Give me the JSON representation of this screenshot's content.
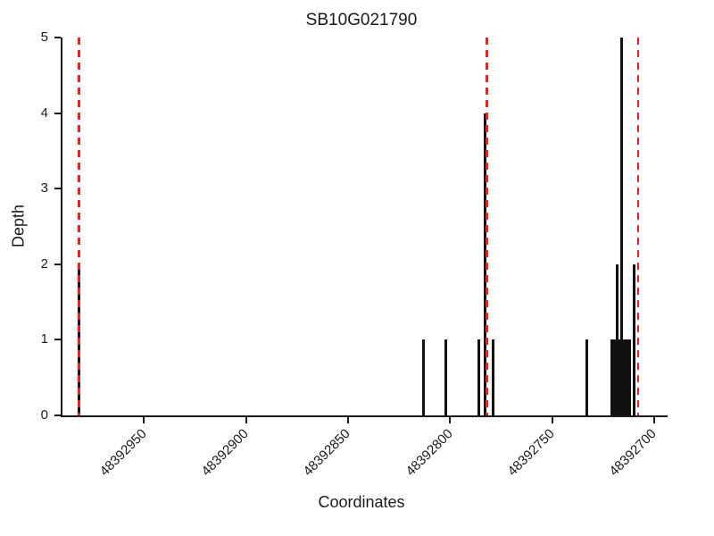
{
  "chart_data": {
    "type": "bar",
    "title": "SB10G021790",
    "xlabel": "Coordinates",
    "ylabel": "Depth",
    "x_axis": {
      "direction": "descending",
      "left_value": 48392990,
      "right_value": 48392697,
      "ticks": [
        48392950,
        48392900,
        48392850,
        48392800,
        48392750,
        48392700
      ]
    },
    "y_axis": {
      "min": 0,
      "max": 5,
      "ticks": [
        0,
        1,
        2,
        3,
        4,
        5
      ]
    },
    "bars": [
      {
        "coordinate": 48392982,
        "depth": 2
      },
      {
        "coordinate": 48392813,
        "depth": 1
      },
      {
        "coordinate": 48392802,
        "depth": 1
      },
      {
        "coordinate": 48392786,
        "depth": 1
      },
      {
        "coordinate": 48392783,
        "depth": 4
      },
      {
        "coordinate": 48392779,
        "depth": 1
      },
      {
        "coordinate": 48392733,
        "depth": 1
      },
      {
        "coordinate": 48392721,
        "depth": 1
      },
      {
        "coordinate": 48392720,
        "depth": 1
      },
      {
        "coordinate": 48392719,
        "depth": 1
      },
      {
        "coordinate": 48392718,
        "depth": 2
      },
      {
        "coordinate": 48392717,
        "depth": 1
      },
      {
        "coordinate": 48392716,
        "depth": 5
      },
      {
        "coordinate": 48392715,
        "depth": 1
      },
      {
        "coordinate": 48392714,
        "depth": 1
      },
      {
        "coordinate": 48392713,
        "depth": 1
      },
      {
        "coordinate": 48392712,
        "depth": 1
      },
      {
        "coordinate": 48392710,
        "depth": 2
      }
    ],
    "red_dashed_lines": [
      48392982,
      48392782,
      48392708
    ],
    "colors": {
      "bar": "#111111",
      "dashed_line": "#ee2020",
      "axis": "#1a1a1a",
      "background": "#ffffff"
    }
  }
}
